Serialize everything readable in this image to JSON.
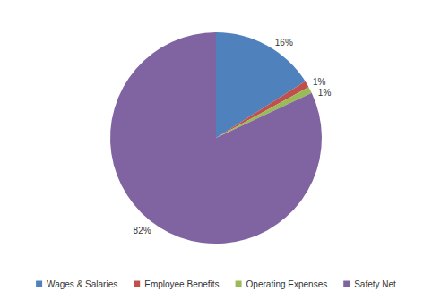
{
  "chart_data": {
    "type": "pie",
    "categories": [
      "Wages & Salaries",
      "Employee Benefits",
      "Operating Expenses",
      "Safety Net"
    ],
    "values": [
      16,
      1,
      1,
      82
    ],
    "value_labels": [
      "16%",
      "1%",
      "1%",
      "82%"
    ],
    "colors": [
      "#4f81bd",
      "#c0504d",
      "#9bbb59",
      "#8064a2"
    ],
    "data_labels": true,
    "legend": "bottom"
  }
}
